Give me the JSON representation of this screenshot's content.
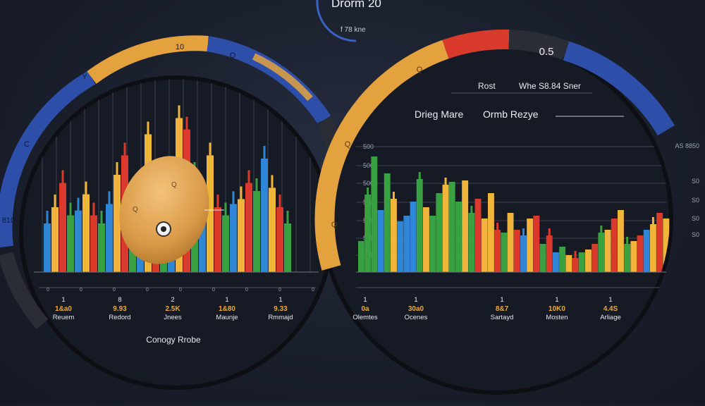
{
  "top_badge": {
    "title": "Drorm 20",
    "subtitle": "f 78 kne"
  },
  "colors": {
    "blue": "#2f86d6",
    "green": "#3aa142",
    "yellow": "#f0b53a",
    "red": "#d93a2b",
    "ring_gold": "#e4a23f",
    "ring_blue": "#2d4faa",
    "ring_dark": "#2a2d35"
  },
  "left_gauge": {
    "ring_labels": [
      "10",
      "Q",
      "Y",
      "C",
      "810"
    ],
    "columns": [
      "1",
      "8",
      "2",
      "1",
      "1"
    ],
    "values": [
      "1&a0",
      "9.93",
      "2.5K",
      "1&80",
      "9.33"
    ],
    "names": [
      "Reuem",
      "Redord",
      "Jnees",
      "Maunje",
      "Rmmajd"
    ],
    "marker": "Q",
    "footer": "Conogy Rrobe",
    "axis_small": [
      "0",
      "0",
      "0",
      "0",
      "0",
      "0",
      "0",
      "0",
      "0"
    ]
  },
  "right_gauge": {
    "ring_value": "0.5",
    "ring_labels": [
      "Q",
      "Q",
      "Q"
    ],
    "header_left": "Rost",
    "header_right": "Whe S8.84 Sner",
    "title_left": "Drieg Mare",
    "title_right": "Ormb Rezye",
    "y_ticks_left": [
      "500",
      "500",
      "500",
      "500",
      "500",
      "500",
      "500"
    ],
    "y_ticks_right": [
      "AS 8850",
      "S0",
      "S0",
      "S0",
      "S0"
    ],
    "columns": [
      "1",
      "1",
      "1",
      "1",
      "1"
    ],
    "values": [
      "0a",
      "30a0",
      "8&7",
      "10K0",
      "4.4S"
    ],
    "names": [
      "Olemtes",
      "Ocenes",
      "Sartayd",
      "Mosten",
      "Arliage"
    ]
  },
  "chart_data": [
    {
      "type": "bar",
      "title": "",
      "series": [
        {
          "name": "",
          "color": "blue",
          "values": [
            30,
            38,
            42,
            55,
            32,
            45,
            42,
            70
          ]
        },
        {
          "name": "",
          "color": "yellow",
          "values": [
            40,
            48,
            60,
            85,
            95,
            72,
            45,
            52
          ]
        },
        {
          "name": "",
          "color": "red",
          "values": [
            55,
            35,
            72,
            55,
            88,
            40,
            55,
            40
          ]
        },
        {
          "name": "",
          "color": "green",
          "values": [
            35,
            30,
            28,
            45,
            60,
            35,
            50,
            30
          ]
        }
      ]
    },
    {
      "type": "bar",
      "title": "",
      "values": [
        22,
        55,
        82,
        44,
        70,
        52,
        36,
        40,
        50,
        66,
        46,
        40,
        56,
        62,
        64,
        50,
        65,
        42,
        52,
        38,
        56,
        30,
        28,
        42,
        30,
        26,
        38,
        40,
        20,
        26,
        14,
        18,
        12,
        10,
        14,
        16,
        20,
        28,
        30,
        38,
        44,
        20,
        22,
        26,
        30,
        34,
        42,
        38
      ],
      "colors": [
        "green",
        "green",
        "green",
        "blue",
        "green",
        "yellow",
        "blue",
        "blue",
        "blue",
        "green",
        "yellow",
        "green",
        "green",
        "yellow",
        "green",
        "green",
        "yellow",
        "green",
        "red",
        "yellow",
        "yellow",
        "red",
        "green",
        "yellow",
        "red",
        "blue",
        "yellow",
        "red",
        "green",
        "red",
        "blue",
        "green",
        "yellow",
        "red",
        "green",
        "yellow",
        "red",
        "green",
        "yellow",
        "red",
        "yellow",
        "green",
        "yellow",
        "red",
        "blue",
        "yellow",
        "red",
        "yellow"
      ]
    }
  ]
}
